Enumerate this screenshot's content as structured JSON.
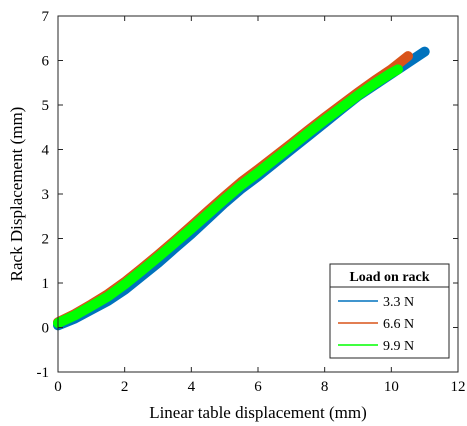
{
  "chart_data": {
    "type": "line",
    "xlabel": "Linear table displacement (mm)",
    "ylabel": "Rack Displacement (mm)",
    "xlim": [
      0,
      12
    ],
    "ylim": [
      -1,
      7
    ],
    "xticks": [
      0,
      2,
      4,
      6,
      8,
      10,
      12
    ],
    "yticks": [
      -1,
      0,
      1,
      2,
      3,
      4,
      5,
      6,
      7
    ],
    "grid": false,
    "legend": {
      "title": "Load on rack",
      "placement": "bottom-right"
    },
    "series": [
      {
        "name": "3.3 N",
        "color": "#0072BD",
        "x": [
          0,
          0.5,
          1,
          1.5,
          2,
          2.5,
          3,
          3.5,
          4,
          4.5,
          5,
          5.5,
          6,
          6.5,
          7,
          7.5,
          8,
          8.5,
          9,
          9.5,
          10,
          10.5,
          11
        ],
        "y": [
          0.05,
          0.2,
          0.4,
          0.6,
          0.85,
          1.15,
          1.45,
          1.78,
          2.1,
          2.45,
          2.8,
          3.12,
          3.4,
          3.7,
          4.0,
          4.3,
          4.6,
          4.9,
          5.2,
          5.45,
          5.7,
          5.95,
          6.2
        ]
      },
      {
        "name": "6.6 N",
        "color": "#D95319",
        "x": [
          0,
          0.5,
          1,
          1.5,
          2,
          2.5,
          3,
          3.5,
          4,
          4.5,
          5,
          5.5,
          6,
          6.5,
          7,
          7.5,
          8,
          8.5,
          9,
          9.5,
          10,
          10.5
        ],
        "y": [
          0.12,
          0.3,
          0.52,
          0.75,
          1.02,
          1.32,
          1.63,
          1.95,
          2.28,
          2.62,
          2.95,
          3.27,
          3.55,
          3.84,
          4.13,
          4.43,
          4.72,
          5.0,
          5.28,
          5.55,
          5.8,
          6.1
        ]
      },
      {
        "name": "9.9 N",
        "color": "#00FF00",
        "x": [
          0,
          0.5,
          1,
          1.5,
          2,
          2.5,
          3,
          3.5,
          4,
          4.5,
          5,
          5.5,
          6,
          6.5,
          7,
          7.5,
          8,
          8.5,
          9,
          9.5,
          10,
          10.2
        ],
        "y": [
          0.1,
          0.27,
          0.48,
          0.7,
          0.97,
          1.27,
          1.58,
          1.9,
          2.22,
          2.55,
          2.88,
          3.2,
          3.48,
          3.78,
          4.07,
          4.37,
          4.66,
          4.94,
          5.22,
          5.48,
          5.72,
          5.8
        ]
      }
    ]
  }
}
